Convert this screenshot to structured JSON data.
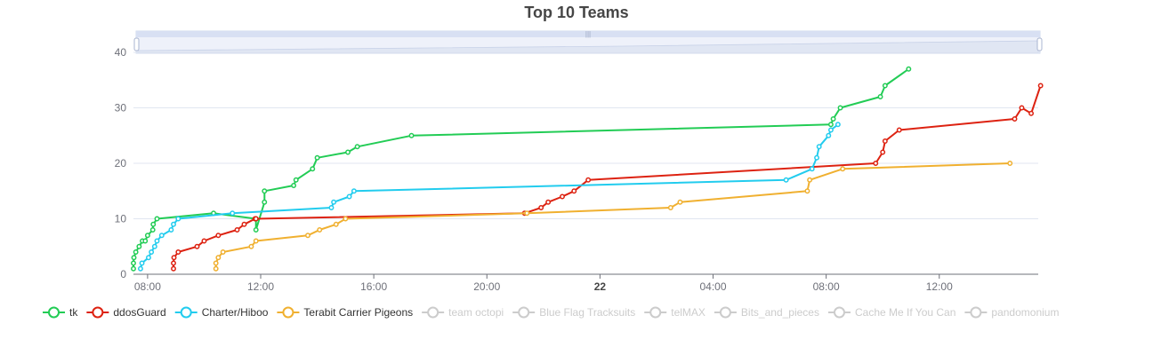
{
  "chart_data": {
    "type": "line",
    "title": "Top 10 Teams",
    "xlabel": "",
    "ylabel": "",
    "ylim": [
      0,
      40
    ],
    "y_ticks": [
      0,
      10,
      20,
      30,
      40
    ],
    "x_range": [
      "2023-01-21 07:30",
      "2023-01-22 15:30"
    ],
    "x_ticks": [
      {
        "t": "2023-01-21 08:00",
        "label": "08:00"
      },
      {
        "t": "2023-01-21 12:00",
        "label": "12:00"
      },
      {
        "t": "2023-01-21 16:00",
        "label": "16:00"
      },
      {
        "t": "2023-01-21 20:00",
        "label": "20:00"
      },
      {
        "t": "2023-01-22 00:00",
        "label": "22",
        "bold": true
      },
      {
        "t": "2023-01-22 04:00",
        "label": "04:00"
      },
      {
        "t": "2023-01-22 08:00",
        "label": "08:00"
      },
      {
        "t": "2023-01-22 12:00",
        "label": "12:00"
      }
    ],
    "grid": true,
    "data_zoom": true,
    "legend_position": "bottom-left",
    "series": [
      {
        "name": "tk",
        "color": "#22cc55",
        "visible": true,
        "points": [
          [
            "2023-01-21 07:30",
            1
          ],
          [
            "2023-01-21 07:30",
            2
          ],
          [
            "2023-01-21 07:31",
            3
          ],
          [
            "2023-01-21 07:35",
            4
          ],
          [
            "2023-01-21 07:42",
            5
          ],
          [
            "2023-01-21 07:49",
            6
          ],
          [
            "2023-01-21 07:55",
            6
          ],
          [
            "2023-01-21 08:00",
            7
          ],
          [
            "2023-01-21 08:11",
            8
          ],
          [
            "2023-01-21 08:12",
            9
          ],
          [
            "2023-01-21 08:20",
            10
          ],
          [
            "2023-01-21 10:20",
            11
          ],
          [
            "2023-01-21 11:50",
            10
          ],
          [
            "2023-01-21 11:50",
            8
          ],
          [
            "2023-01-21 12:08",
            13
          ],
          [
            "2023-01-21 12:08",
            15
          ],
          [
            "2023-01-21 13:10",
            16
          ],
          [
            "2023-01-21 13:15",
            17
          ],
          [
            "2023-01-21 13:50",
            19
          ],
          [
            "2023-01-21 14:00",
            21
          ],
          [
            "2023-01-21 15:05",
            22
          ],
          [
            "2023-01-21 15:25",
            23
          ],
          [
            "2023-01-21 17:20",
            25
          ],
          [
            "2023-01-22 08:10",
            27
          ],
          [
            "2023-01-22 08:15",
            28
          ],
          [
            "2023-01-22 08:30",
            30
          ],
          [
            "2023-01-22 09:55",
            32
          ],
          [
            "2023-01-22 10:05",
            34
          ],
          [
            "2023-01-22 10:55",
            37
          ]
        ]
      },
      {
        "name": "ddosGuard",
        "color": "#dd2211",
        "visible": true,
        "points": [
          [
            "2023-01-21 08:55",
            1
          ],
          [
            "2023-01-21 08:55",
            2
          ],
          [
            "2023-01-21 08:56",
            3
          ],
          [
            "2023-01-21 09:05",
            4
          ],
          [
            "2023-01-21 09:45",
            5
          ],
          [
            "2023-01-21 10:00",
            6
          ],
          [
            "2023-01-21 10:30",
            7
          ],
          [
            "2023-01-21 11:10",
            8
          ],
          [
            "2023-01-21 11:25",
            9
          ],
          [
            "2023-01-21 11:48",
            10
          ],
          [
            "2023-01-21 11:50",
            10
          ],
          [
            "2023-01-21 21:20",
            11
          ],
          [
            "2023-01-21 21:55",
            12
          ],
          [
            "2023-01-21 22:10",
            13
          ],
          [
            "2023-01-21 22:40",
            14
          ],
          [
            "2023-01-21 23:05",
            15
          ],
          [
            "2023-01-21 23:35",
            17
          ],
          [
            "2023-01-22 09:45",
            20
          ],
          [
            "2023-01-22 10:00",
            22
          ],
          [
            "2023-01-22 10:05",
            24
          ],
          [
            "2023-01-22 10:35",
            26
          ],
          [
            "2023-01-22 14:40",
            28
          ],
          [
            "2023-01-22 14:55",
            30
          ],
          [
            "2023-01-22 15:15",
            29
          ],
          [
            "2023-01-22 15:35",
            34
          ]
        ]
      },
      {
        "name": "Charter/Hiboo",
        "color": "#22ccee",
        "visible": true,
        "points": [
          [
            "2023-01-21 07:45",
            1
          ],
          [
            "2023-01-21 07:48",
            2
          ],
          [
            "2023-01-21 08:02",
            3
          ],
          [
            "2023-01-21 08:08",
            4
          ],
          [
            "2023-01-21 08:15",
            5
          ],
          [
            "2023-01-21 08:20",
            6
          ],
          [
            "2023-01-21 08:30",
            7
          ],
          [
            "2023-01-21 08:50",
            8
          ],
          [
            "2023-01-21 08:55",
            9
          ],
          [
            "2023-01-21 09:05",
            10
          ],
          [
            "2023-01-21 11:00",
            11
          ],
          [
            "2023-01-21 14:30",
            12
          ],
          [
            "2023-01-21 14:35",
            13
          ],
          [
            "2023-01-21 15:08",
            14
          ],
          [
            "2023-01-21 15:18",
            15
          ],
          [
            "2023-01-22 06:35",
            17
          ],
          [
            "2023-01-22 07:30",
            19
          ],
          [
            "2023-01-22 07:40",
            21
          ],
          [
            "2023-01-22 07:45",
            23
          ],
          [
            "2023-01-22 08:05",
            25
          ],
          [
            "2023-01-22 08:10",
            26
          ],
          [
            "2023-01-22 08:25",
            27
          ]
        ]
      },
      {
        "name": "Terabit Carrier Pigeons",
        "color": "#f0b030",
        "visible": true,
        "points": [
          [
            "2023-01-21 10:25",
            1
          ],
          [
            "2023-01-21 10:25",
            2
          ],
          [
            "2023-01-21 10:30",
            3
          ],
          [
            "2023-01-21 10:40",
            4
          ],
          [
            "2023-01-21 11:40",
            5
          ],
          [
            "2023-01-21 11:50",
            6
          ],
          [
            "2023-01-21 13:40",
            7
          ],
          [
            "2023-01-21 14:05",
            8
          ],
          [
            "2023-01-21 14:40",
            9
          ],
          [
            "2023-01-21 15:00",
            10
          ],
          [
            "2023-01-21 21:25",
            11
          ],
          [
            "2023-01-22 02:30",
            12
          ],
          [
            "2023-01-22 02:50",
            13
          ],
          [
            "2023-01-22 07:20",
            15
          ],
          [
            "2023-01-22 07:25",
            17
          ],
          [
            "2023-01-22 08:35",
            19
          ],
          [
            "2023-01-22 14:30",
            20
          ]
        ]
      },
      {
        "name": "team octopi",
        "color": "#cccccc",
        "visible": false,
        "points": []
      },
      {
        "name": "Blue Flag Tracksuits",
        "color": "#cccccc",
        "visible": false,
        "points": []
      },
      {
        "name": "telMAX",
        "color": "#cccccc",
        "visible": false,
        "points": []
      },
      {
        "name": "Bits_and_pieces",
        "color": "#cccccc",
        "visible": false,
        "points": []
      },
      {
        "name": "Cache Me If You Can",
        "color": "#cccccc",
        "visible": false,
        "points": []
      },
      {
        "name": "pandomonium",
        "color": "#cccccc",
        "visible": false,
        "points": []
      }
    ]
  }
}
